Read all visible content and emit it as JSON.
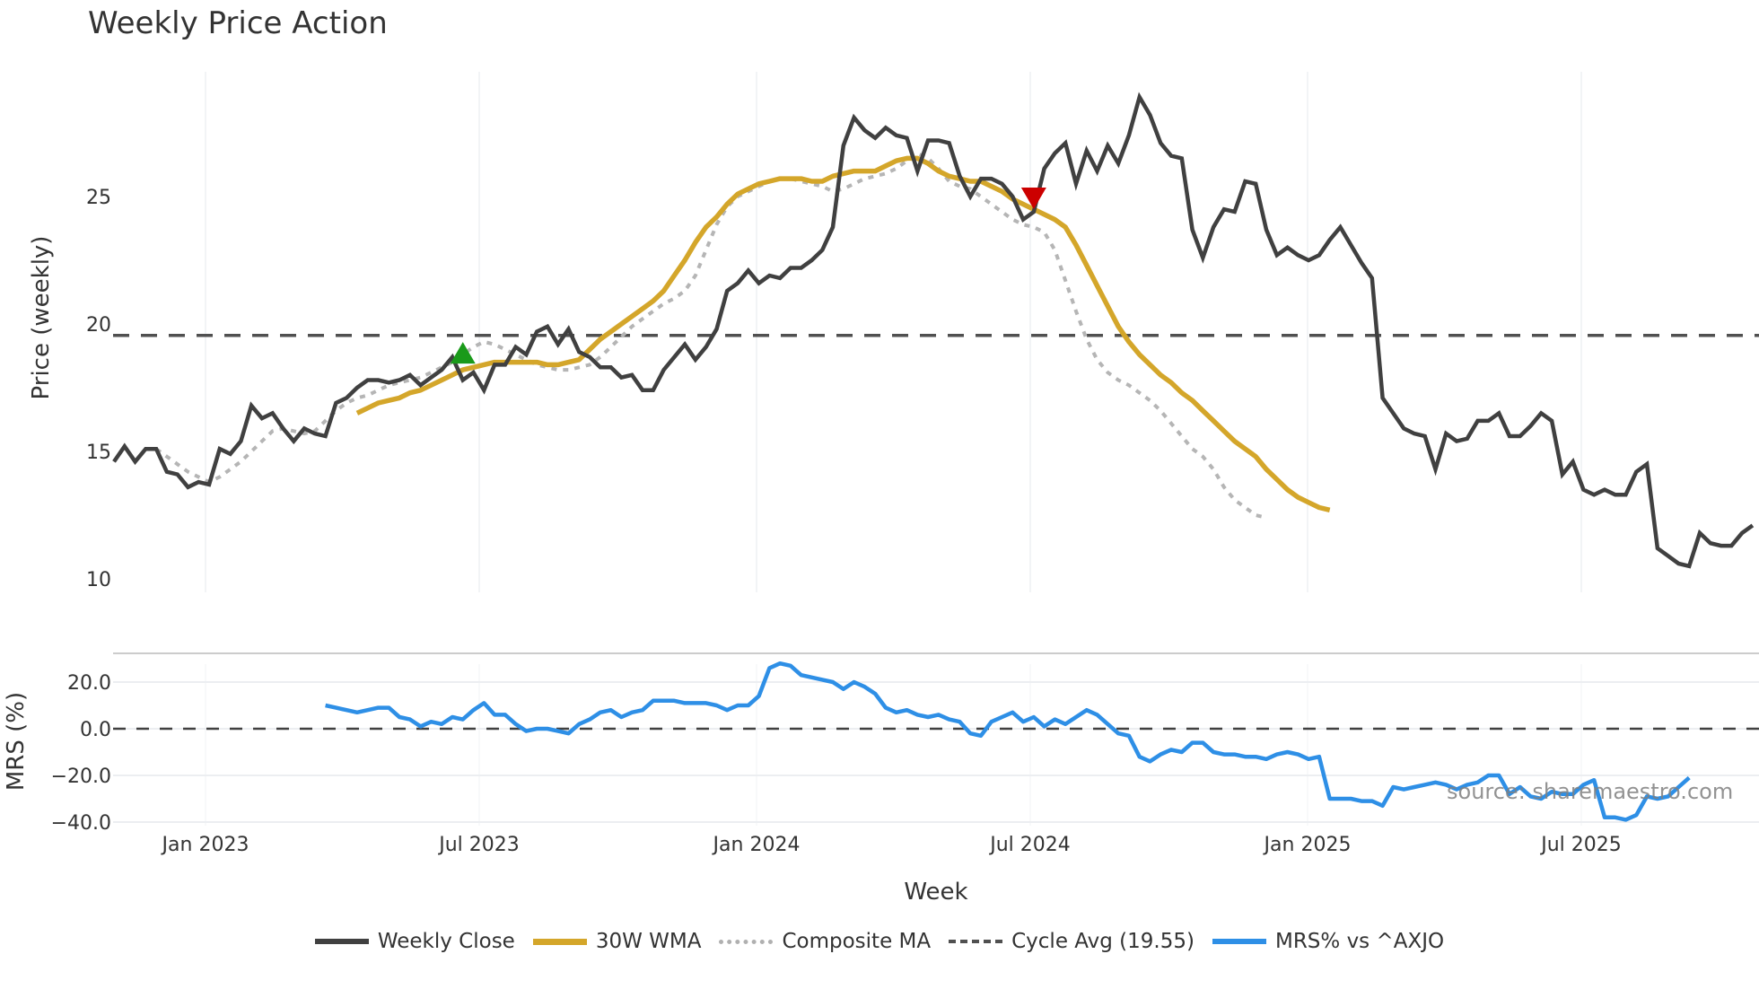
{
  "title": "Weekly Price Action",
  "source_text": "source: sharemaestro.com",
  "legend": [
    {
      "label": "Weekly Close",
      "color": "#404040",
      "style": "solid"
    },
    {
      "label": "30W WMA",
      "color": "#D4A62A",
      "style": "solid"
    },
    {
      "label": "Composite MA",
      "color": "#b0b0b0",
      "style": "dotted"
    },
    {
      "label": "Cycle Avg (19.55)",
      "color": "#505050",
      "style": "dashed"
    },
    {
      "label": "MRS% vs ^AXJO",
      "color": "#2E8FE6",
      "style": "solid"
    }
  ],
  "chart_data": [
    {
      "type": "line",
      "title": "Weekly Price Action",
      "xlabel": "Week",
      "ylabel": "Price (weekly)",
      "ylim": [
        9.5,
        29.5
      ],
      "yticks": [
        10,
        15,
        20,
        25
      ],
      "xticks": [
        "Jan 2023",
        "Jul 2023",
        "Jan 2024",
        "Jul 2024",
        "Jan 2025",
        "Jul 2025"
      ],
      "grid": "vertical",
      "legend_position": "bottom",
      "x_start": "2022-11",
      "x_step": "1 week",
      "reference_lines": [
        {
          "name": "Cycle Avg (19.55)",
          "value": 19.55,
          "style": "dashed"
        }
      ],
      "markers": [
        {
          "type": "buy",
          "shape": "triangle-up",
          "color": "#1a9a1a",
          "x_index": 33,
          "value": 18.8
        },
        {
          "type": "sell",
          "shape": "triangle-down",
          "color": "#cc0000",
          "x_index": 87,
          "value": 25.0
        }
      ],
      "series": [
        {
          "name": "Weekly Close",
          "values": [
            14.6,
            15.2,
            14.6,
            15.1,
            15.1,
            14.2,
            14.1,
            13.6,
            13.8,
            13.7,
            15.1,
            14.9,
            15.4,
            16.8,
            16.3,
            16.5,
            15.9,
            15.4,
            15.9,
            15.7,
            15.6,
            16.9,
            17.1,
            17.5,
            17.8,
            17.8,
            17.7,
            17.8,
            18.0,
            17.6,
            17.9,
            18.2,
            18.7,
            17.8,
            18.1,
            17.4,
            18.4,
            18.4,
            19.1,
            18.8,
            19.7,
            19.9,
            19.2,
            19.8,
            18.9,
            18.7,
            18.3,
            18.3,
            17.9,
            18.0,
            17.4,
            17.4,
            18.2,
            18.7,
            19.2,
            18.6,
            19.1,
            19.8,
            21.3,
            21.6,
            22.1,
            21.6,
            21.9,
            21.8,
            22.2,
            22.2,
            22.5,
            22.9,
            23.8,
            27.0,
            28.1,
            27.6,
            27.3,
            27.7,
            27.4,
            27.3,
            26.0,
            27.2,
            27.2,
            27.1,
            25.8,
            25.0,
            25.7,
            25.7,
            25.5,
            25.0,
            24.1,
            24.4,
            26.1,
            26.7,
            27.1,
            25.5,
            26.8,
            26.0,
            27.0,
            26.3,
            27.4,
            28.9,
            28.2,
            27.1,
            26.6,
            26.5,
            23.7,
            22.6,
            23.8,
            24.5,
            24.4,
            25.6,
            25.5,
            23.7,
            22.7,
            23.0,
            22.7,
            22.5,
            22.7,
            23.3,
            23.8,
            23.1,
            22.4,
            21.8,
            17.1,
            16.5,
            15.9,
            15.7,
            15.6,
            14.3,
            15.7,
            15.4,
            15.5,
            16.2,
            16.2,
            16.5,
            15.6,
            15.6,
            16.0,
            16.5,
            16.2,
            14.1,
            14.6,
            13.5,
            13.3,
            13.5,
            13.3,
            13.3,
            14.2,
            14.5,
            11.2,
            10.9,
            10.6,
            10.5,
            11.8,
            11.4,
            11.3,
            11.3,
            11.8,
            12.1
          ]
        },
        {
          "name": "30W WMA",
          "start_index": 23,
          "values": [
            16.5,
            16.7,
            16.9,
            17.0,
            17.1,
            17.3,
            17.4,
            17.6,
            17.8,
            18.0,
            18.2,
            18.3,
            18.4,
            18.5,
            18.5,
            18.5,
            18.5,
            18.5,
            18.4,
            18.4,
            18.5,
            18.6,
            19.0,
            19.4,
            19.7,
            20.0,
            20.3,
            20.6,
            20.9,
            21.3,
            21.9,
            22.5,
            23.2,
            23.8,
            24.2,
            24.7,
            25.1,
            25.3,
            25.5,
            25.6,
            25.7,
            25.7,
            25.7,
            25.6,
            25.6,
            25.8,
            25.9,
            26.0,
            26.0,
            26.0,
            26.2,
            26.4,
            26.5,
            26.5,
            26.3,
            26.0,
            25.8,
            25.7,
            25.6,
            25.6,
            25.4,
            25.2,
            24.9,
            24.7,
            24.5,
            24.3,
            24.1,
            23.8,
            23.1,
            22.3,
            21.5,
            20.7,
            19.9,
            19.3,
            18.8,
            18.4,
            18.0,
            17.7,
            17.3,
            17.0,
            16.6,
            16.2,
            15.8,
            15.4,
            15.1,
            14.8,
            14.3,
            13.9,
            13.5,
            13.2,
            13.0,
            12.8,
            12.7
          ]
        },
        {
          "name": "Composite MA",
          "start_index": 4,
          "values": [
            15.1,
            14.8,
            14.5,
            14.2,
            14.0,
            13.8,
            14.0,
            14.3,
            14.6,
            15.0,
            15.4,
            15.8,
            15.9,
            15.8,
            15.7,
            15.8,
            16.2,
            16.6,
            16.9,
            17.1,
            17.2,
            17.4,
            17.6,
            17.7,
            17.8,
            17.9,
            18.1,
            18.3,
            18.5,
            18.8,
            19.1,
            19.3,
            19.2,
            19.0,
            18.8,
            18.6,
            18.4,
            18.3,
            18.2,
            18.2,
            18.3,
            18.4,
            18.7,
            19.1,
            19.5,
            19.9,
            20.2,
            20.5,
            20.8,
            21.0,
            21.3,
            21.9,
            22.9,
            23.9,
            24.6,
            25.0,
            25.2,
            25.4,
            25.6,
            25.7,
            25.7,
            25.6,
            25.5,
            25.4,
            25.2,
            25.3,
            25.5,
            25.7,
            25.8,
            25.9,
            26.1,
            26.4,
            26.7,
            26.5,
            26.1,
            25.6,
            25.4,
            25.3,
            25.0,
            24.7,
            24.4,
            24.1,
            23.9,
            23.8,
            23.6,
            22.9,
            21.7,
            20.5,
            19.4,
            18.6,
            18.1,
            17.8,
            17.6,
            17.3,
            17.0,
            16.6,
            16.1,
            15.6,
            15.1,
            14.8,
            14.3,
            13.6,
            13.1,
            12.8,
            12.5,
            12.4
          ]
        },
        {
          "name": "Cycle Avg (19.55)",
          "constant": 19.55
        }
      ]
    },
    {
      "type": "line",
      "title": "",
      "xlabel": "Week",
      "ylabel": "MRS (%)",
      "ylim": [
        -42,
        30
      ],
      "yticks": [
        -40.0,
        -20.0,
        0.0,
        20.0
      ],
      "ytick_labels": [
        "−40.0",
        "−20.0",
        "0.0",
        "20.0"
      ],
      "reference_lines": [
        {
          "value": 0,
          "style": "dashed"
        }
      ],
      "series": [
        {
          "name": "MRS% vs ^AXJO",
          "start_index": 20,
          "values": [
            10,
            9,
            8,
            7,
            8,
            9,
            9,
            5,
            4,
            1,
            3,
            2,
            5,
            4,
            8,
            11,
            6,
            6,
            2,
            -1,
            0,
            0,
            -1,
            -2,
            2,
            4,
            7,
            8,
            5,
            7,
            8,
            12,
            12,
            12,
            11,
            11,
            11,
            10,
            8,
            10,
            10,
            14,
            26,
            28,
            27,
            23,
            22,
            21,
            20,
            17,
            20,
            18,
            15,
            9,
            7,
            8,
            6,
            5,
            6,
            4,
            3,
            -2,
            -3,
            3,
            5,
            7,
            3,
            5,
            1,
            4,
            2,
            5,
            8,
            6,
            2,
            -2,
            -3,
            -12,
            -14,
            -11,
            -9,
            -10,
            -6,
            -6,
            -10,
            -11,
            -11,
            -12,
            -12,
            -13,
            -11,
            -10,
            -11,
            -13,
            -12,
            -30,
            -30,
            -30,
            -31,
            -31,
            -33,
            -25,
            -26,
            -25,
            -24,
            -23,
            -24,
            -26,
            -24,
            -23,
            -20,
            -20,
            -28,
            -25,
            -29,
            -30,
            -27,
            -28,
            -28,
            -24,
            -22,
            -38,
            -38,
            -39,
            -37,
            -29,
            -30,
            -29,
            -25,
            -21
          ]
        }
      ]
    }
  ]
}
